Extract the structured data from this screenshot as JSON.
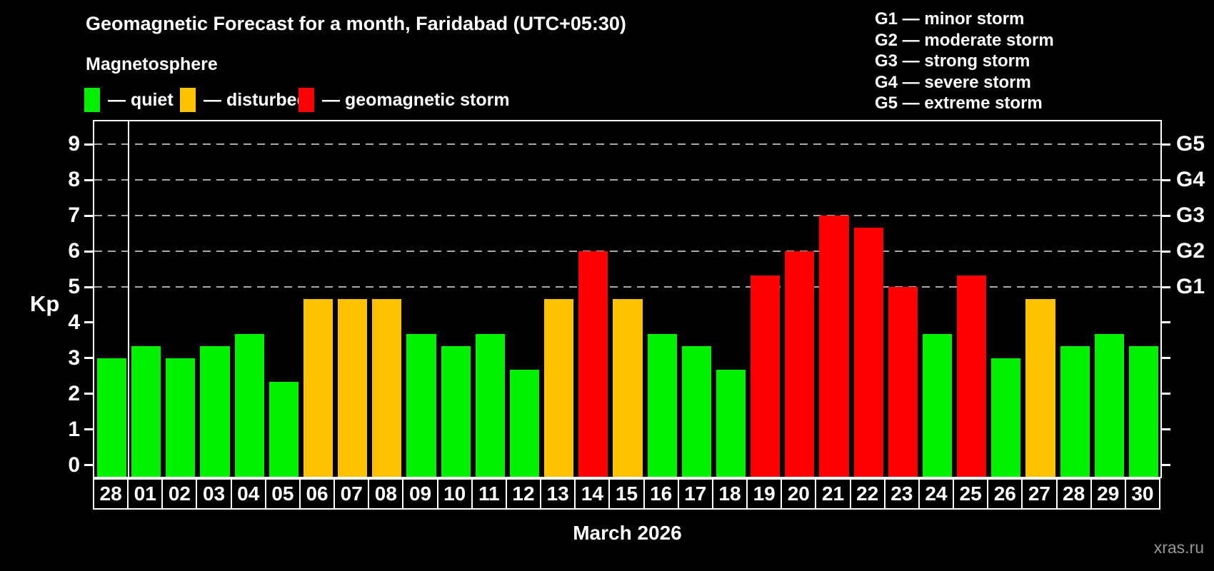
{
  "title": "Geomagnetic Forecast for a month, Faridabad (UTC+05:30)",
  "subtitle": "Magnetosphere",
  "legend": [
    {
      "key": "quiet",
      "label": "— quiet",
      "color": "#00F000"
    },
    {
      "key": "disturbed",
      "label": "— disturbed",
      "color": "#FFC200"
    },
    {
      "key": "storm",
      "label": "— geomagnetic storm",
      "color": "#FF0000"
    }
  ],
  "storm_scale": [
    "G1 — minor storm",
    "G2 — moderate storm",
    "G3 — strong storm",
    "G4 — severe storm",
    "G5 — extreme storm"
  ],
  "watermark": "xras.ru",
  "chart_data": {
    "type": "bar",
    "title": "Geomagnetic Forecast for a month, Faridabad (UTC+05:30)",
    "xlabel": "March 2026",
    "ylabel": "Kp",
    "ylim": [
      0,
      9
    ],
    "y_ticks": [
      0,
      1,
      2,
      3,
      4,
      5,
      6,
      7,
      8,
      9
    ],
    "gridlines_kp": [
      5,
      6,
      7,
      8,
      9
    ],
    "grid_style": "dashed horizontal lines at storm levels only",
    "legend_position": "top",
    "right_axis": [
      {
        "kp": 5,
        "label": "G1"
      },
      {
        "kp": 6,
        "label": "G2"
      },
      {
        "kp": 7,
        "label": "G3"
      },
      {
        "kp": 8,
        "label": "G4"
      },
      {
        "kp": 9,
        "label": "G5"
      }
    ],
    "month_separator_after_index": 0,
    "bars": [
      {
        "day": "28",
        "kp": 3.0,
        "status": "quiet"
      },
      {
        "day": "01",
        "kp": 3.33,
        "status": "quiet"
      },
      {
        "day": "02",
        "kp": 3.0,
        "status": "quiet"
      },
      {
        "day": "03",
        "kp": 3.33,
        "status": "quiet"
      },
      {
        "day": "04",
        "kp": 3.67,
        "status": "quiet"
      },
      {
        "day": "05",
        "kp": 2.33,
        "status": "quiet"
      },
      {
        "day": "06",
        "kp": 4.67,
        "status": "disturbed"
      },
      {
        "day": "07",
        "kp": 4.67,
        "status": "disturbed"
      },
      {
        "day": "08",
        "kp": 4.67,
        "status": "disturbed"
      },
      {
        "day": "09",
        "kp": 3.67,
        "status": "quiet"
      },
      {
        "day": "10",
        "kp": 3.33,
        "status": "quiet"
      },
      {
        "day": "11",
        "kp": 3.67,
        "status": "quiet"
      },
      {
        "day": "12",
        "kp": 2.67,
        "status": "quiet"
      },
      {
        "day": "13",
        "kp": 4.67,
        "status": "disturbed"
      },
      {
        "day": "14",
        "kp": 6.0,
        "status": "storm"
      },
      {
        "day": "15",
        "kp": 4.67,
        "status": "disturbed"
      },
      {
        "day": "16",
        "kp": 3.67,
        "status": "quiet"
      },
      {
        "day": "17",
        "kp": 3.33,
        "status": "quiet"
      },
      {
        "day": "18",
        "kp": 2.67,
        "status": "quiet"
      },
      {
        "day": "19",
        "kp": 5.33,
        "status": "storm"
      },
      {
        "day": "20",
        "kp": 6.0,
        "status": "storm"
      },
      {
        "day": "21",
        "kp": 7.0,
        "status": "storm"
      },
      {
        "day": "22",
        "kp": 6.67,
        "status": "storm"
      },
      {
        "day": "23",
        "kp": 5.0,
        "status": "storm"
      },
      {
        "day": "24",
        "kp": 3.67,
        "status": "quiet"
      },
      {
        "day": "25",
        "kp": 5.33,
        "status": "storm"
      },
      {
        "day": "26",
        "kp": 3.0,
        "status": "quiet"
      },
      {
        "day": "27",
        "kp": 4.67,
        "status": "disturbed"
      },
      {
        "day": "28",
        "kp": 3.33,
        "status": "quiet"
      },
      {
        "day": "29",
        "kp": 3.67,
        "status": "quiet"
      },
      {
        "day": "30",
        "kp": 3.33,
        "status": "quiet"
      }
    ]
  }
}
